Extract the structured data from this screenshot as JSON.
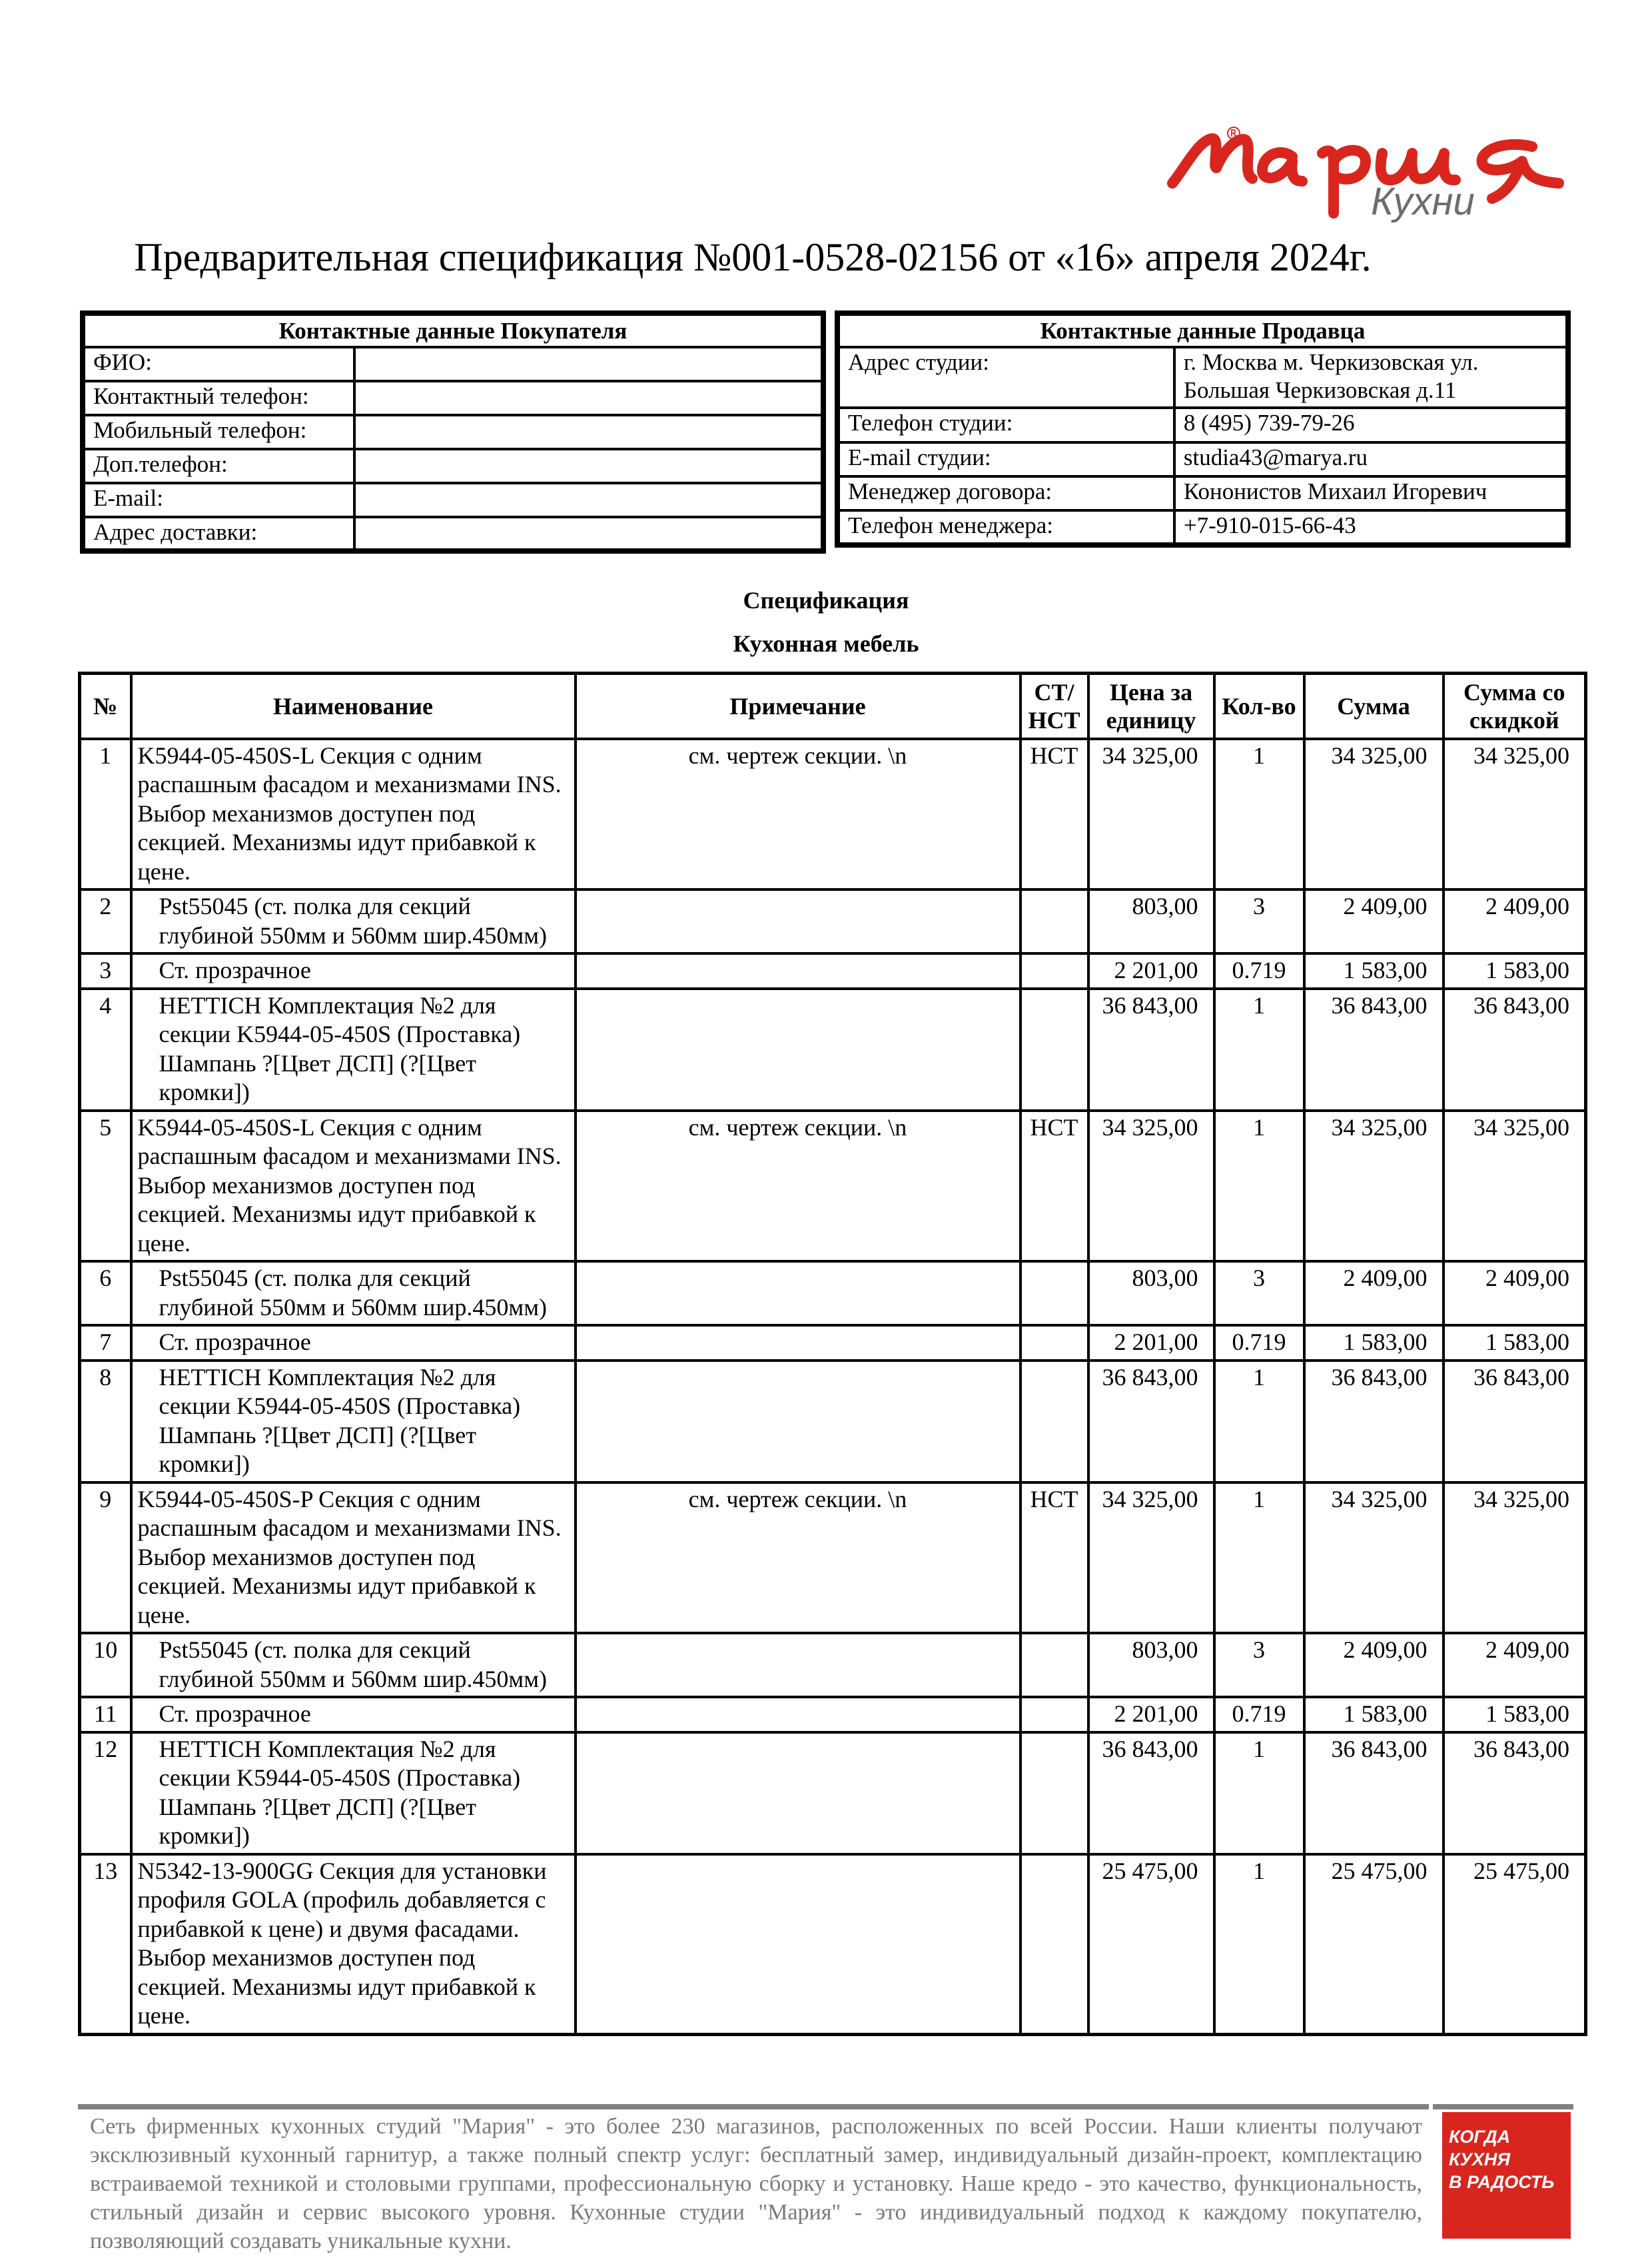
{
  "logo": {
    "brand": "Мария",
    "sub": "Кухни",
    "color": "#d8261f"
  },
  "title": "Предварительная спецификация №001-0528-02156 от «16» апреля 2024г.",
  "buyer": {
    "heading": "Контактные данные Покупателя",
    "rows": [
      {
        "label": "ФИО:",
        "value": ""
      },
      {
        "label": "Контактный телефон:",
        "value": ""
      },
      {
        "label": "Мобильный телефон:",
        "value": ""
      },
      {
        "label": "Доп.телефон:",
        "value": ""
      },
      {
        "label": "E-mail:",
        "value": ""
      },
      {
        "label": "Адрес доставки:",
        "value": ""
      }
    ]
  },
  "seller": {
    "heading": "Контактные данные Продавца",
    "rows": [
      {
        "label": "Адрес студии:",
        "value": "г. Москва м. Черкизовская ул. Большая Черкизовская  д.11"
      },
      {
        "label": "Телефон студии:",
        "value": "8 (495) 739-79-26"
      },
      {
        "label": "E-mail студии:",
        "value": "studia43@marya.ru"
      },
      {
        "label": "Менеджер договора:",
        "value": "Кононистов Михаил Игоревич"
      },
      {
        "label": "Телефон менеджера:",
        "value": "+7-910-015-66-43"
      }
    ]
  },
  "spec_title": "Спецификация",
  "section_title": "Кухонная мебель",
  "table": {
    "headers": [
      "№",
      "Наименование",
      "Примечание",
      "СТ/ НСТ",
      "Цена за единицу",
      "Кол-во",
      "Сумма",
      "Сумма со скидкой"
    ],
    "rows": [
      {
        "n": "1",
        "name": "K5944-05-450S-L Секция с одним распашным фасадом и механизмами INS. Выбор механизмов доступен под секцией. Механизмы идут прибавкой к цене.",
        "note": "см. чертеж секции. \\n",
        "type": "НСТ",
        "price": "34 325,00",
        "qty": "1",
        "sum": "34 325,00",
        "disc": "34 325,00",
        "sub": false
      },
      {
        "n": "2",
        "name": "Pst55045 (ст. полка для секций глубиной 550мм и 560мм шир.450мм)",
        "note": "",
        "type": "",
        "price": "803,00",
        "qty": "3",
        "sum": "2 409,00",
        "disc": "2 409,00",
        "sub": true
      },
      {
        "n": "3",
        "name": "Ст. прозрачное",
        "note": "",
        "type": "",
        "price": "2 201,00",
        "qty": "0.719",
        "sum": "1 583,00",
        "disc": "1 583,00",
        "sub": true
      },
      {
        "n": "4",
        "name": "HETTICH Комплектация №2 для секции K5944-05-450S (Проставка) Шампань ?[Цвет ДСП] (?[Цвет кромки])",
        "note": "",
        "type": "",
        "price": "36 843,00",
        "qty": "1",
        "sum": "36 843,00",
        "disc": "36 843,00",
        "sub": true
      },
      {
        "n": "5",
        "name": "K5944-05-450S-L Секция с одним распашным фасадом и механизмами INS. Выбор механизмов доступен под секцией. Механизмы идут прибавкой к цене.",
        "note": "см. чертеж секции. \\n",
        "type": "НСТ",
        "price": "34 325,00",
        "qty": "1",
        "sum": "34 325,00",
        "disc": "34 325,00",
        "sub": false
      },
      {
        "n": "6",
        "name": "Pst55045 (ст. полка для секций глубиной 550мм и 560мм шир.450мм)",
        "note": "",
        "type": "",
        "price": "803,00",
        "qty": "3",
        "sum": "2 409,00",
        "disc": "2 409,00",
        "sub": true
      },
      {
        "n": "7",
        "name": "Ст. прозрачное",
        "note": "",
        "type": "",
        "price": "2 201,00",
        "qty": "0.719",
        "sum": "1 583,00",
        "disc": "1 583,00",
        "sub": true
      },
      {
        "n": "8",
        "name": "HETTICH Комплектация №2 для секции K5944-05-450S (Проставка) Шампань ?[Цвет ДСП] (?[Цвет кромки])",
        "note": "",
        "type": "",
        "price": "36 843,00",
        "qty": "1",
        "sum": "36 843,00",
        "disc": "36 843,00",
        "sub": true
      },
      {
        "n": "9",
        "name": "K5944-05-450S-P Секция с одним распашным фасадом и механизмами INS. Выбор механизмов доступен под секцией. Механизмы идут прибавкой к цене.",
        "note": "см. чертеж секции. \\n",
        "type": "НСТ",
        "price": "34 325,00",
        "qty": "1",
        "sum": "34 325,00",
        "disc": "34 325,00",
        "sub": false
      },
      {
        "n": "10",
        "name": "Pst55045 (ст. полка для секций глубиной 550мм и 560мм шир.450мм)",
        "note": "",
        "type": "",
        "price": "803,00",
        "qty": "3",
        "sum": "2 409,00",
        "disc": "2 409,00",
        "sub": true
      },
      {
        "n": "11",
        "name": "Ст. прозрачное",
        "note": "",
        "type": "",
        "price": "2 201,00",
        "qty": "0.719",
        "sum": "1 583,00",
        "disc": "1 583,00",
        "sub": true
      },
      {
        "n": "12",
        "name": "HETTICH Комплектация №2 для секции K5944-05-450S (Проставка) Шампань ?[Цвет ДСП] (?[Цвет кромки])",
        "note": "",
        "type": "",
        "price": "36 843,00",
        "qty": "1",
        "sum": "36 843,00",
        "disc": "36 843,00",
        "sub": true
      },
      {
        "n": "13",
        "name": "N5342-13-900GG Секция для установки профиля GOLA (профиль добавляется с прибавкой к цене) и двумя фасадами. Выбор механизмов доступен под секцией. Механизмы идут прибавкой к цене.",
        "note": "",
        "type": "",
        "price": "25 475,00",
        "qty": "1",
        "sum": "25 475,00",
        "disc": "25 475,00",
        "sub": false
      }
    ]
  },
  "footer": {
    "text": "Сеть фирменных кухонных студий \"Мария\" - это более 230 магазинов, расположенных по всей России. Наши клиенты получают эксклюзивный кухонный гарнитур, а также полный спектр услуг: бесплатный замер, индивидуальный дизайн-проект, комплектацию встраиваемой техникой и столовыми группами, профессиональную сборку и установку. Наше кредо - это качество, функциональность, стильный дизайн и сервис высокого уровня. Кухонные студии \"Мария\" - это индивидуальный подход к каждому покупателю, позволяющий создавать уникальные кухни.",
    "badge": [
      "КОГДА",
      "КУХНЯ",
      "В РАДОСТЬ"
    ],
    "badge_color": "#d8261f"
  }
}
